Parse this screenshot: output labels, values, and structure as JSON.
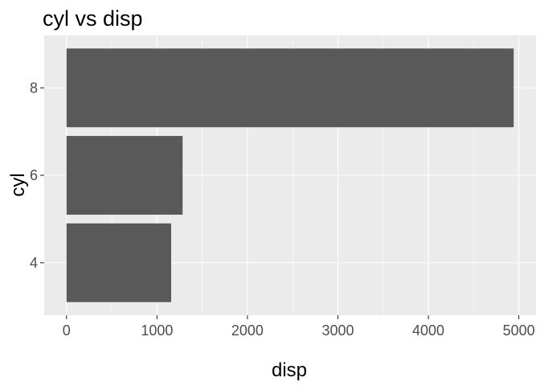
{
  "chart_data": {
    "type": "bar",
    "orientation": "horizontal",
    "title": "cyl vs disp",
    "xlabel": "disp",
    "ylabel": "cyl",
    "categories": [
      "4",
      "6",
      "8"
    ],
    "values": [
      1156.5,
      1283.2,
      4943.4
    ],
    "xlim": [
      -247,
      5190
    ],
    "xticks": [
      0,
      1000,
      2000,
      3000,
      4000,
      5000
    ],
    "xtick_labels": [
      "0",
      "1000",
      "2000",
      "3000",
      "4000",
      "5000"
    ],
    "grid": true,
    "legend": "none",
    "colors": {
      "bar": "#595959",
      "panel_background": "#ebebeb",
      "grid": "#ffffff",
      "tick_text": "#4d4d4d"
    }
  }
}
